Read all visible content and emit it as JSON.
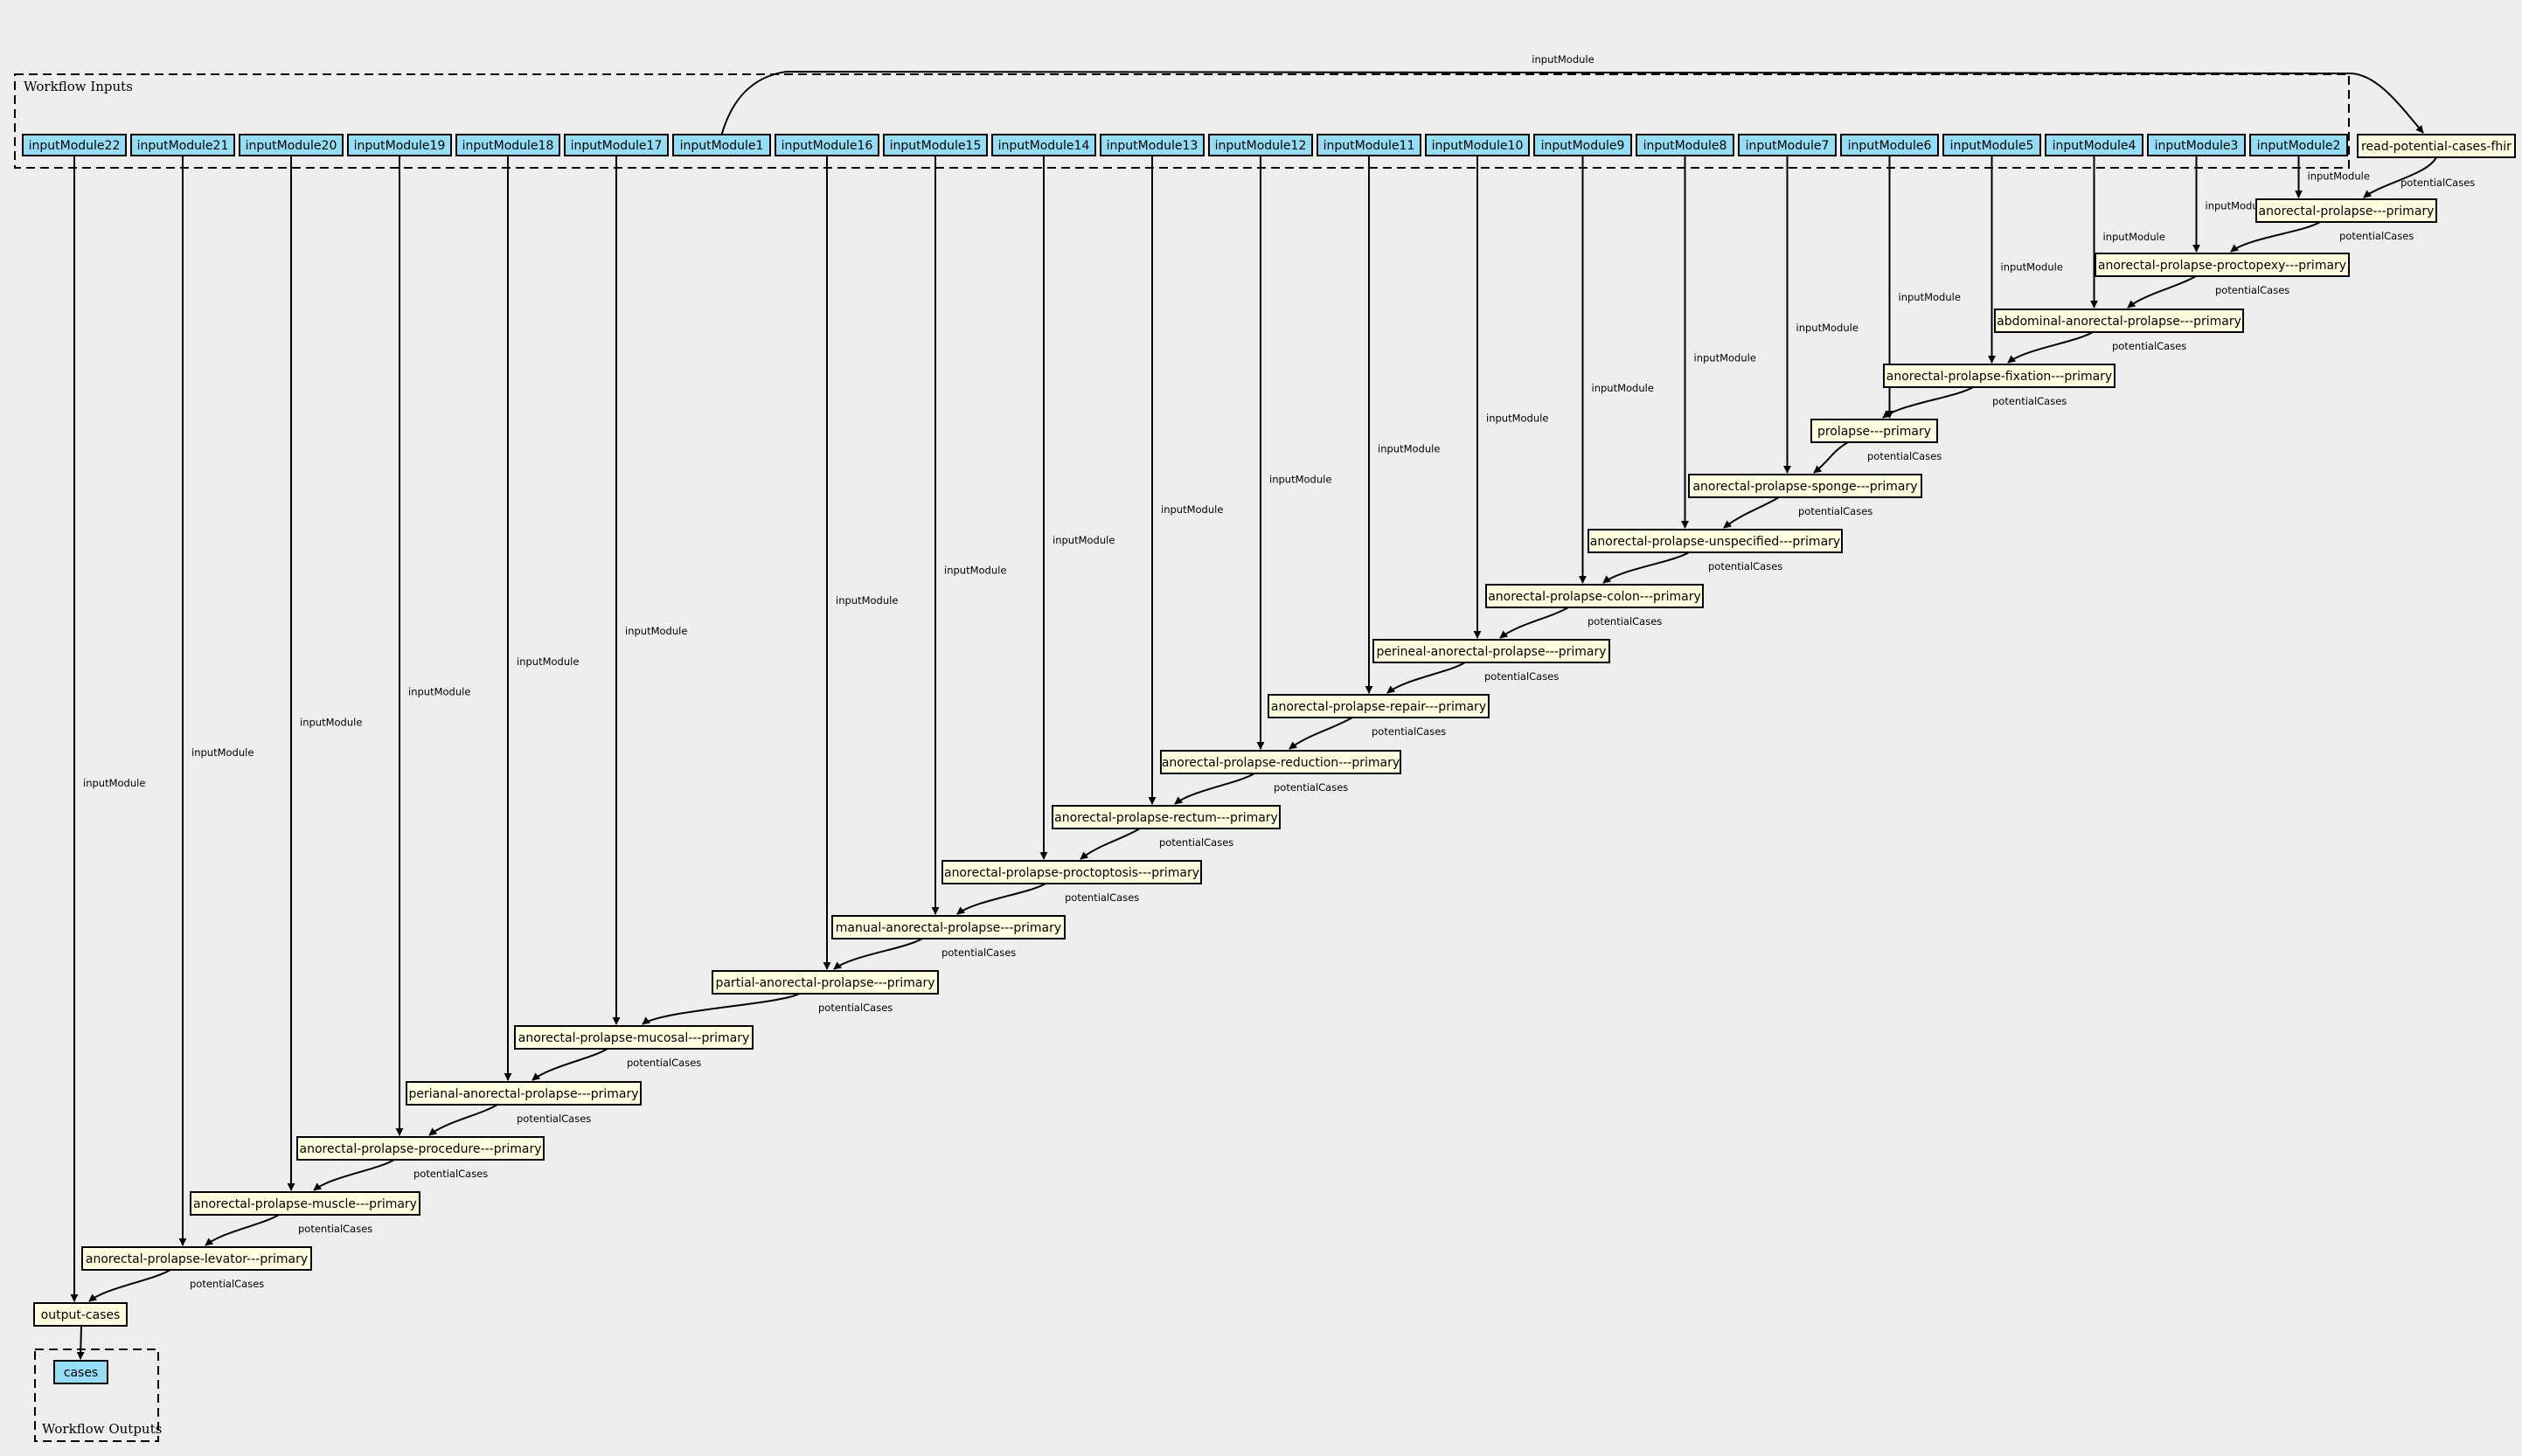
{
  "clusters": {
    "inputs_label": "Workflow Inputs",
    "outputs_label": "Workflow Outputs"
  },
  "input_nodes": [
    "inputModule22",
    "inputModule21",
    "inputModule20",
    "inputModule19",
    "inputModule18",
    "inputModule17",
    "inputModule1",
    "inputModule16",
    "inputModule15",
    "inputModule14",
    "inputModule13",
    "inputModule12",
    "inputModule11",
    "inputModule10",
    "inputModule9",
    "inputModule8",
    "inputModule7",
    "inputModule6",
    "inputModule5",
    "inputModule4",
    "inputModule3",
    "inputModule2"
  ],
  "source_node": "read-potential-cases-fhir",
  "steps": [
    {
      "label": "anorectal-prolapse---primary",
      "input": "inputModule2"
    },
    {
      "label": "anorectal-prolapse-proctopexy---primary",
      "input": "inputModule3"
    },
    {
      "label": "abdominal-anorectal-prolapse---primary",
      "input": "inputModule4"
    },
    {
      "label": "anorectal-prolapse-fixation---primary",
      "input": "inputModule5"
    },
    {
      "label": "prolapse---primary",
      "input": "inputModule6"
    },
    {
      "label": "anorectal-prolapse-sponge---primary",
      "input": "inputModule7"
    },
    {
      "label": "anorectal-prolapse-unspecified---primary",
      "input": "inputModule8"
    },
    {
      "label": "anorectal-prolapse-colon---primary",
      "input": "inputModule9"
    },
    {
      "label": "perineal-anorectal-prolapse---primary",
      "input": "inputModule10"
    },
    {
      "label": "anorectal-prolapse-repair---primary",
      "input": "inputModule11"
    },
    {
      "label": "anorectal-prolapse-reduction---primary",
      "input": "inputModule12"
    },
    {
      "label": "anorectal-prolapse-rectum---primary",
      "input": "inputModule13"
    },
    {
      "label": "anorectal-prolapse-proctoptosis---primary",
      "input": "inputModule14"
    },
    {
      "label": "manual-anorectal-prolapse---primary",
      "input": "inputModule15"
    },
    {
      "label": "partial-anorectal-prolapse---primary",
      "input": "inputModule16"
    },
    {
      "label": "anorectal-prolapse-mucosal---primary",
      "input": "inputModule17"
    },
    {
      "label": "perianal-anorectal-prolapse---primary",
      "input": "inputModule18"
    },
    {
      "label": "anorectal-prolapse-procedure---primary",
      "input": "inputModule19"
    },
    {
      "label": "anorectal-prolapse-muscle---primary",
      "input": "inputModule20"
    },
    {
      "label": "anorectal-prolapse-levator---primary",
      "input": "inputModule21"
    }
  ],
  "output_step": {
    "label": "output-cases",
    "input": "inputModule22"
  },
  "output_node": "cases",
  "edge_labels": {
    "input": "inputModule",
    "chain": "potentialCases"
  },
  "colors": {
    "background": "#eeeeee",
    "input_fill": "#94ddf4",
    "step_fill": "#ffffe0",
    "stroke": "#000000"
  }
}
